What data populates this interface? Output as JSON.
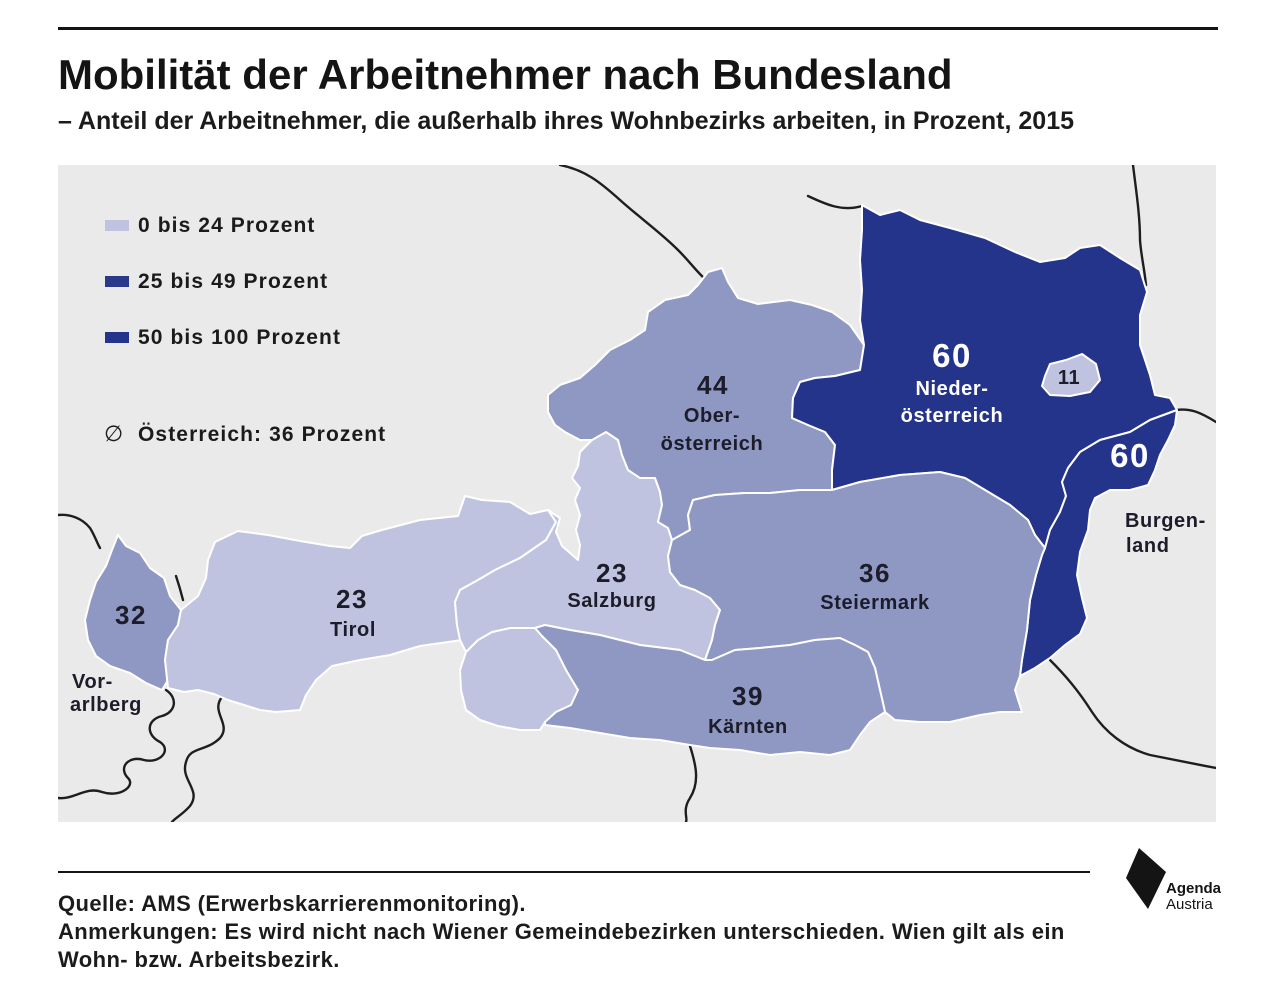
{
  "header": {
    "title": "Mobilität der Arbeitnehmer nach Bundesland",
    "subtitle": "– Anteil der Arbeitnehmer, die außerhalb ihres Wohnbezirks arbeiten, in Prozent, 2015"
  },
  "colors": {
    "background": "#eaeaea",
    "low": "#bfc3df",
    "mid": "#8f97c3",
    "high": "#25348b"
  },
  "legend": {
    "items": [
      {
        "label": "0 bis 24 Prozent",
        "color": "#bfc3df"
      },
      {
        "label": "25 bis 49 Prozent",
        "color": "#2a398a"
      },
      {
        "label": "50 bis 100 Prozent",
        "color": "#25348b"
      }
    ],
    "average": {
      "symbol": "∅",
      "label": "Österreich: 36 Prozent"
    }
  },
  "map_data": {
    "regions": {
      "vorarlberg": {
        "value": 32,
        "label_lines": [
          "Vor-",
          "arlberg"
        ],
        "color": "#8f97c3"
      },
      "tirol": {
        "value": 23,
        "label_lines": [
          "Tirol"
        ],
        "color": "#bfc3df"
      },
      "salzburg": {
        "value": 23,
        "label_lines": [
          "Salzburg"
        ],
        "color": "#bfc3df"
      },
      "oberoesterreich": {
        "value": 44,
        "label_lines": [
          "Ober-",
          "österreich"
        ],
        "color": "#8f97c3"
      },
      "niederoesterreich": {
        "value": 60,
        "label_lines": [
          "Nieder-",
          "österreich"
        ],
        "color": "#25348b"
      },
      "wien": {
        "value": 11,
        "label_lines": [],
        "color": "#bfc3df"
      },
      "burgenland": {
        "value": 60,
        "label_lines": [
          "Burgen-",
          "land"
        ],
        "color": "#25348b"
      },
      "steiermark": {
        "value": 36,
        "label_lines": [
          "Steiermark"
        ],
        "color": "#8f97c3"
      },
      "kaernten": {
        "value": 39,
        "label_lines": [
          "Kärnten"
        ],
        "color": "#8f97c3"
      }
    }
  },
  "footer": {
    "source": "Quelle: AMS (Erwerbskarrierenmonitoring).",
    "notes_lines": [
      "Anmerkungen: Es wird nicht nach Wiener Gemeindebezirken unterschieden. Wien gilt als ein",
      "Wohn- bzw. Arbeitsbezirk."
    ]
  },
  "logo": {
    "line1": "Agenda",
    "line2": "Austria",
    "color": "#141414"
  }
}
